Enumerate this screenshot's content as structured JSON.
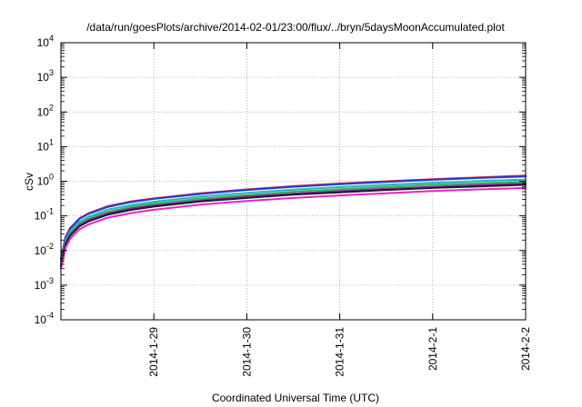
{
  "chart_data": {
    "type": "line",
    "title": "/data/run/goesPlots/archive/2014-02-01/23:00/flux/../bryn/5daysMoonAccumulated.plot",
    "xlabel": "Coordinated Universal Time (UTC)",
    "ylabel": "cSv",
    "y_scale": "log",
    "ylim_exponents": [
      -4,
      4
    ],
    "y_tick_base": "10",
    "y_tick_exponents": [
      "-4",
      "-3",
      "-2",
      "-1",
      "0",
      "1",
      "2",
      "3",
      "4"
    ],
    "x_range": [
      "2014-01-28 00:00",
      "2014-02-02 00:00"
    ],
    "x_tick_labels": [
      "2014-1-29",
      "2014-1-30",
      "2014-1-31",
      "2014-2-1",
      "2014-2-2"
    ],
    "x_tick_days": [
      1,
      2,
      3,
      4,
      5
    ],
    "grid": true,
    "legend": "none",
    "x_days": [
      0.0,
      0.05,
      0.1,
      0.2,
      0.3,
      0.5,
      0.75,
      1.0,
      1.5,
      2.0,
      2.5,
      3.0,
      3.5,
      4.0,
      4.5,
      5.0
    ],
    "series": [
      {
        "color": "#e8203c",
        "values": [
          0.006,
          0.025,
          0.045,
          0.085,
          0.12,
          0.19,
          0.26,
          0.32,
          0.45,
          0.58,
          0.72,
          0.86,
          1.0,
          1.15,
          1.3,
          1.45
        ]
      },
      {
        "color": "#1a3dd8",
        "values": [
          0.0055,
          0.024,
          0.043,
          0.082,
          0.115,
          0.18,
          0.25,
          0.31,
          0.43,
          0.56,
          0.69,
          0.82,
          0.96,
          1.1,
          1.24,
          1.38
        ]
      },
      {
        "color": "#22b4c8",
        "values": [
          0.0048,
          0.02,
          0.036,
          0.068,
          0.095,
          0.15,
          0.205,
          0.255,
          0.36,
          0.46,
          0.57,
          0.68,
          0.79,
          0.9,
          1.01,
          1.12
        ]
      },
      {
        "color": "#2db85a",
        "values": [
          0.0042,
          0.018,
          0.032,
          0.06,
          0.084,
          0.13,
          0.18,
          0.225,
          0.315,
          0.4,
          0.5,
          0.59,
          0.69,
          0.79,
          0.88,
          0.97
        ]
      },
      {
        "color": "#8a2a8a",
        "values": [
          0.0038,
          0.016,
          0.029,
          0.054,
          0.076,
          0.118,
          0.162,
          0.2,
          0.28,
          0.36,
          0.44,
          0.52,
          0.61,
          0.69,
          0.78,
          0.86
        ]
      },
      {
        "color": "#1a1a3a",
        "values": [
          0.0035,
          0.015,
          0.027,
          0.05,
          0.07,
          0.108,
          0.148,
          0.185,
          0.26,
          0.33,
          0.41,
          0.48,
          0.56,
          0.64,
          0.71,
          0.79
        ]
      },
      {
        "color": "#f020c0",
        "values": [
          0.003,
          0.012,
          0.022,
          0.041,
          0.057,
          0.088,
          0.12,
          0.15,
          0.21,
          0.27,
          0.33,
          0.39,
          0.45,
          0.52,
          0.58,
          0.64
        ]
      }
    ]
  }
}
